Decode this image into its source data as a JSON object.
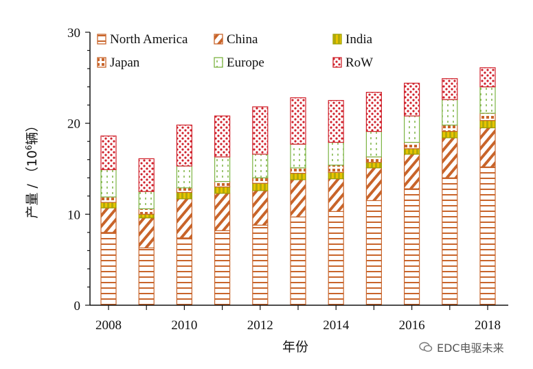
{
  "chart_data": {
    "type": "bar",
    "stacked": true,
    "title": "",
    "xlabel": "年份",
    "ylabel_prefix": "产量 / （10",
    "ylabel_sup": "6",
    "ylabel_suffix": "辆）",
    "ylim": [
      0,
      30
    ],
    "yticks": [
      0,
      10,
      20,
      30
    ],
    "xtick_labels": [
      "2008",
      "2010",
      "2012",
      "2014",
      "2016",
      "2018"
    ],
    "categories": [
      "2008",
      "2009",
      "2010",
      "2011",
      "2012",
      "2013",
      "2014",
      "2015",
      "2016",
      "2017",
      "2018"
    ],
    "series": [
      {
        "name": "North America",
        "color": "#c8642a",
        "pattern": "hlines",
        "values": [
          8.0,
          6.3,
          7.4,
          8.2,
          8.8,
          9.7,
          10.3,
          11.5,
          12.8,
          14.0,
          15.2
        ]
      },
      {
        "name": "China",
        "color": "#c8642a",
        "pattern": "diag",
        "values": [
          2.7,
          3.3,
          4.3,
          4.1,
          3.8,
          4.1,
          3.6,
          3.6,
          3.8,
          4.4,
          4.3
        ]
      },
      {
        "name": "India",
        "color": "#9aa000",
        "pattern": "solid",
        "values": [
          0.6,
          0.4,
          0.7,
          0.7,
          0.8,
          0.7,
          0.7,
          0.6,
          0.6,
          0.7,
          0.8
        ]
      },
      {
        "name": "Japan",
        "color": "#c8642a",
        "pattern": "dots",
        "values": [
          0.6,
          0.6,
          0.5,
          0.6,
          0.6,
          0.6,
          0.8,
          0.6,
          0.7,
          0.7,
          0.8
        ]
      },
      {
        "name": "Europe",
        "color": "#7cb342",
        "pattern": "dashed",
        "values": [
          3.0,
          1.9,
          2.4,
          2.7,
          2.6,
          2.6,
          2.5,
          2.8,
          2.9,
          2.8,
          2.9
        ]
      },
      {
        "name": "RoW",
        "color": "#d0202a",
        "pattern": "reddots",
        "values": [
          3.7,
          3.6,
          4.5,
          4.5,
          5.2,
          5.1,
          4.6,
          4.3,
          3.6,
          2.3,
          2.1
        ]
      }
    ]
  },
  "watermark": {
    "text": "EDC电驱未来"
  }
}
